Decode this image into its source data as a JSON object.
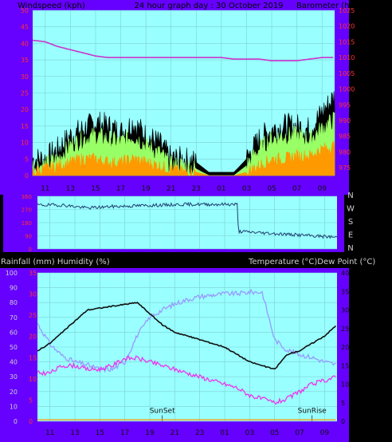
{
  "top_chart": {
    "title": "24 hour graph day : 30 October 2019",
    "left_label": "Windspeed (kph)",
    "right_label": "Barometer (hpa)"
  },
  "bottom_chart": {
    "label_rain_humidity": "Rainfall (mm)  Humidity (%)",
    "label_temp_dew": "Temperature (°C)Dew Point (°C)",
    "sunset_label": "SunSet",
    "sunrise_label": "SunRise"
  },
  "x_tick_labels": [
    "11",
    "13",
    "15",
    "17",
    "19",
    "21",
    "23",
    "01",
    "03",
    "05",
    "07",
    "09"
  ],
  "direction_labels": [
    "N",
    "W",
    "S",
    "E",
    "N"
  ],
  "colors": {
    "panel_bg": "#6600ff",
    "plot_bg": "#99ffff",
    "grid": "#7fd0d0",
    "gust": "#000000",
    "avg": "#99ff66",
    "low": "#ff9900",
    "baro": "#cc33cc",
    "dir": "#1f3f6f",
    "temp": "#111111",
    "humidity": "#9999ff",
    "dew": "#ee33ee",
    "rain": "#ff9900"
  },
  "chart_data": [
    {
      "type": "line",
      "title": "24 hour graph day : 30 October 2019",
      "ylabel": "Windspeed (kph)",
      "y2label": "Barometer (hpa)",
      "x": [
        10,
        11,
        12,
        13,
        14,
        15,
        16,
        17,
        18,
        19,
        20,
        21,
        22,
        23,
        24,
        25,
        26,
        27,
        28,
        29,
        30,
        31,
        32,
        33,
        34
      ],
      "xticks": [
        "11",
        "13",
        "15",
        "17",
        "19",
        "21",
        "23",
        "01",
        "03",
        "05",
        "07",
        "09"
      ],
      "ylim": [
        0,
        50
      ],
      "yticks": [
        0,
        5,
        10,
        15,
        20,
        25,
        30,
        35,
        40,
        45,
        50
      ],
      "y2lim": [
        972.5,
        1025
      ],
      "y2ticks": [
        975,
        980,
        985,
        990,
        995,
        1000,
        1005,
        1010,
        1015,
        1020,
        1025
      ],
      "series": [
        {
          "name": "gust",
          "values": [
            5,
            5,
            8,
            12,
            14,
            16,
            15,
            13,
            16,
            12,
            10,
            5,
            5,
            4,
            1,
            1,
            1,
            5,
            11,
            14,
            15,
            15,
            14,
            19,
            24
          ]
        },
        {
          "name": "average",
          "values": [
            3,
            3,
            5,
            9,
            11,
            12,
            11,
            10,
            12,
            9,
            7,
            3,
            3,
            2,
            0,
            0,
            0,
            3,
            8,
            11,
            12,
            12,
            11,
            14,
            17
          ]
        },
        {
          "name": "low",
          "values": [
            1,
            2,
            3,
            4,
            5,
            5,
            4,
            4,
            5,
            4,
            3,
            2,
            1,
            1,
            0,
            0,
            0,
            1,
            3,
            5,
            5,
            6,
            6,
            8,
            9
          ]
        },
        {
          "name": "barometer",
          "axis": "right",
          "values": [
            1015.5,
            1015,
            1013.5,
            1012.5,
            1011.5,
            1010.5,
            1010,
            1010,
            1010,
            1010,
            1010,
            1010,
            1010,
            1010,
            1010,
            1010,
            1009.5,
            1009.5,
            1009.5,
            1009,
            1009,
            1009,
            1009.5,
            1010,
            1010
          ]
        }
      ]
    },
    {
      "type": "line",
      "title": "",
      "ylabel": "Wind direction",
      "x": [
        10,
        12,
        14,
        16,
        18,
        20,
        22,
        24,
        26,
        26.1,
        28,
        30,
        32,
        34
      ],
      "yticks": [
        "N",
        "W",
        "S",
        "E",
        "N"
      ],
      "ylim": [
        0,
        360
      ],
      "series": [
        {
          "name": "direction",
          "values": [
            300,
            300,
            280,
            290,
            295,
            300,
            305,
            305,
            305,
            120,
            110,
            100,
            90,
            80
          ]
        }
      ]
    },
    {
      "type": "line",
      "title": "",
      "ylabel": "Rainfall (mm)  Humidity (%)",
      "y2label": "Temperature (°C)Dew Point (°C)",
      "x": [
        10,
        11,
        12,
        13,
        14,
        15,
        16,
        17,
        18,
        19,
        20,
        21,
        22,
        23,
        24,
        25,
        26,
        27,
        28,
        29,
        30,
        31,
        32,
        33,
        34
      ],
      "xticks": [
        "11",
        "13",
        "15",
        "17",
        "19",
        "21",
        "23",
        "01",
        "03",
        "05",
        "07",
        "09"
      ],
      "ylim": [
        0,
        100
      ],
      "yticks": [
        0,
        10,
        20,
        30,
        40,
        50,
        60,
        70,
        80,
        90,
        100
      ],
      "y2lim": [
        0,
        40
      ],
      "y2ticks": [
        0,
        5,
        10,
        15,
        20,
        25,
        30,
        35,
        40
      ],
      "rain_ticks": [
        0,
        5,
        10,
        15,
        20,
        25,
        30,
        35
      ],
      "annotations": [
        {
          "label": "SunSet",
          "x": 20
        },
        {
          "label": "SunRise",
          "x": 32
        }
      ],
      "series": [
        {
          "name": "temperature",
          "axis": "right",
          "values": [
            19,
            21,
            24,
            27,
            30,
            30.5,
            31,
            31.5,
            32,
            29,
            26,
            24,
            23,
            22,
            21,
            20,
            18,
            16,
            15,
            14,
            18,
            19,
            21,
            23,
            26
          ]
        },
        {
          "name": "humidity",
          "axis": "left",
          "values": [
            66,
            52,
            44,
            40,
            38,
            35,
            35,
            40,
            58,
            70,
            75,
            79,
            82,
            84,
            85,
            86,
            86,
            87,
            87,
            55,
            48,
            45,
            43,
            40,
            38
          ]
        },
        {
          "name": "dew point",
          "axis": "right",
          "values": [
            13,
            13,
            15,
            15,
            14,
            14,
            15,
            17,
            17,
            16,
            15,
            14,
            13,
            12,
            11,
            10,
            9,
            7,
            6,
            5,
            6,
            8,
            10,
            11,
            12
          ]
        },
        {
          "name": "rainfall",
          "axis": "left",
          "values": [
            1,
            1,
            1,
            1,
            1,
            1,
            1,
            1,
            1,
            1,
            1,
            1,
            1,
            1,
            1,
            1,
            1,
            1,
            1,
            1,
            1,
            1,
            1,
            1,
            1
          ]
        }
      ]
    }
  ]
}
